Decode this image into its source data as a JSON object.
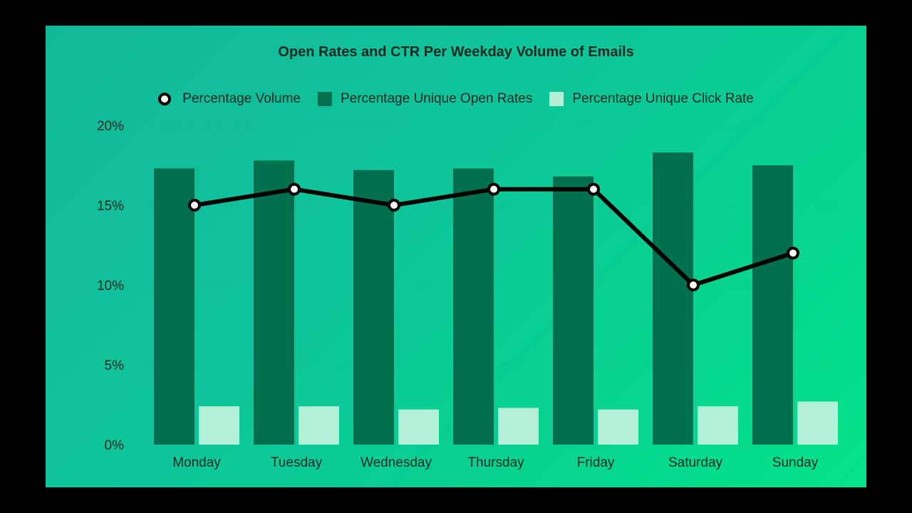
{
  "chart_data": {
    "type": "bar",
    "title": "Open Rates and CTR Per Weekday Volume of Emails",
    "categories": [
      "Monday",
      "Tuesday",
      "Wednesday",
      "Thursday",
      "Friday",
      "Saturday",
      "Sunday"
    ],
    "series": [
      {
        "name": "Percentage Unique Open Rates",
        "type": "bar",
        "color": "#00704f",
        "values": [
          17.3,
          17.8,
          17.2,
          17.3,
          16.8,
          18.3,
          17.5
        ]
      },
      {
        "name": "Percentage Unique Click Rate",
        "type": "bar",
        "color": "#b3f0d8",
        "values": [
          2.4,
          2.4,
          2.2,
          2.3,
          2.2,
          2.4,
          2.7
        ]
      },
      {
        "name": "Percentage Volume",
        "type": "line",
        "color": "#000000",
        "values": [
          15,
          16,
          15,
          16,
          16,
          10,
          12
        ]
      }
    ],
    "yticks": [
      "0%",
      "5%",
      "10%",
      "15%",
      "20%"
    ],
    "ylim": [
      0,
      20
    ],
    "xlabel": "",
    "ylabel": "",
    "grid": true,
    "legend_position": "top"
  },
  "legend": [
    {
      "label": "Percentage Volume",
      "kind": "line-marker"
    },
    {
      "label": "Percentage Unique Open Rates",
      "kind": "swatch",
      "color": "#00704f"
    },
    {
      "label": "Percentage Unique Click Rate",
      "kind": "swatch",
      "color": "#b3f0d8"
    }
  ]
}
